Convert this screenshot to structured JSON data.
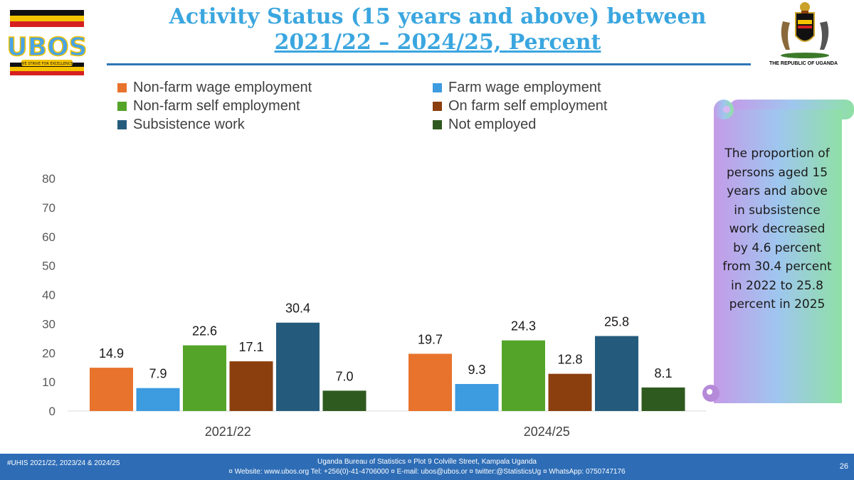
{
  "header": {
    "title_line1": "Activity Status (15 years and above) between",
    "title_line2": "2021/22 – 2024/25, Percent",
    "logo_text": "UBOS",
    "logo_motto": "WE STRIVE FOR EXCELLENCE",
    "coat_label": "THE REPUBLIC OF UGANDA"
  },
  "chart_data": {
    "type": "bar",
    "categories": [
      "2021/22",
      "2024/25"
    ],
    "series": [
      {
        "name": "Non-farm wage employment",
        "color": "#e8732c",
        "values": [
          14.9,
          19.7
        ]
      },
      {
        "name": "Farm wage employment",
        "color": "#3d9be0",
        "values": [
          7.9,
          9.3
        ]
      },
      {
        "name": "Non-farm self employment",
        "color": "#55a42a",
        "values": [
          22.6,
          24.3
        ]
      },
      {
        "name": "On farm self employment",
        "color": "#8b3f0e",
        "values": [
          17.1,
          12.8
        ]
      },
      {
        "name": "Subsistence work",
        "color": "#245b7d",
        "values": [
          30.4,
          25.8
        ]
      },
      {
        "name": "Not employed",
        "color": "#2f5a1f",
        "values": [
          7.0,
          8.1
        ]
      }
    ],
    "data_labels": [
      [
        "14.9",
        "19.7"
      ],
      [
        "7.9",
        "9.3"
      ],
      [
        "22.6",
        "24.3"
      ],
      [
        "17.1",
        "12.8"
      ],
      [
        "30.4",
        "25.8"
      ],
      [
        "7.0",
        "8.1"
      ]
    ],
    "yticks": [
      "0",
      "10",
      "20",
      "30",
      "40",
      "50",
      "60",
      "70",
      "80"
    ],
    "ylim": [
      0,
      80
    ],
    "grid": false,
    "legend_position": "top"
  },
  "callout": {
    "text": "The proportion of persons aged 15 years and above in subsistence work decreased by 4.6 percent from 30.4 percent in 2022 to 25.8 percent in 2025"
  },
  "footer": {
    "left": "#UHIS 2021/22, 2023/24 & 2024/25",
    "line1": "Uganda Bureau of Statistics ¤ Plot 9 Colville Street, Kampala Uganda",
    "line2": "¤ Website: www.ubos.org Tel: +256(0)-41-4706000 ¤ E-mail: ubos@ubos.or ¤ twitter:@StatisticsUg ¤ WhatsApp: 0750747176",
    "page": "26"
  }
}
